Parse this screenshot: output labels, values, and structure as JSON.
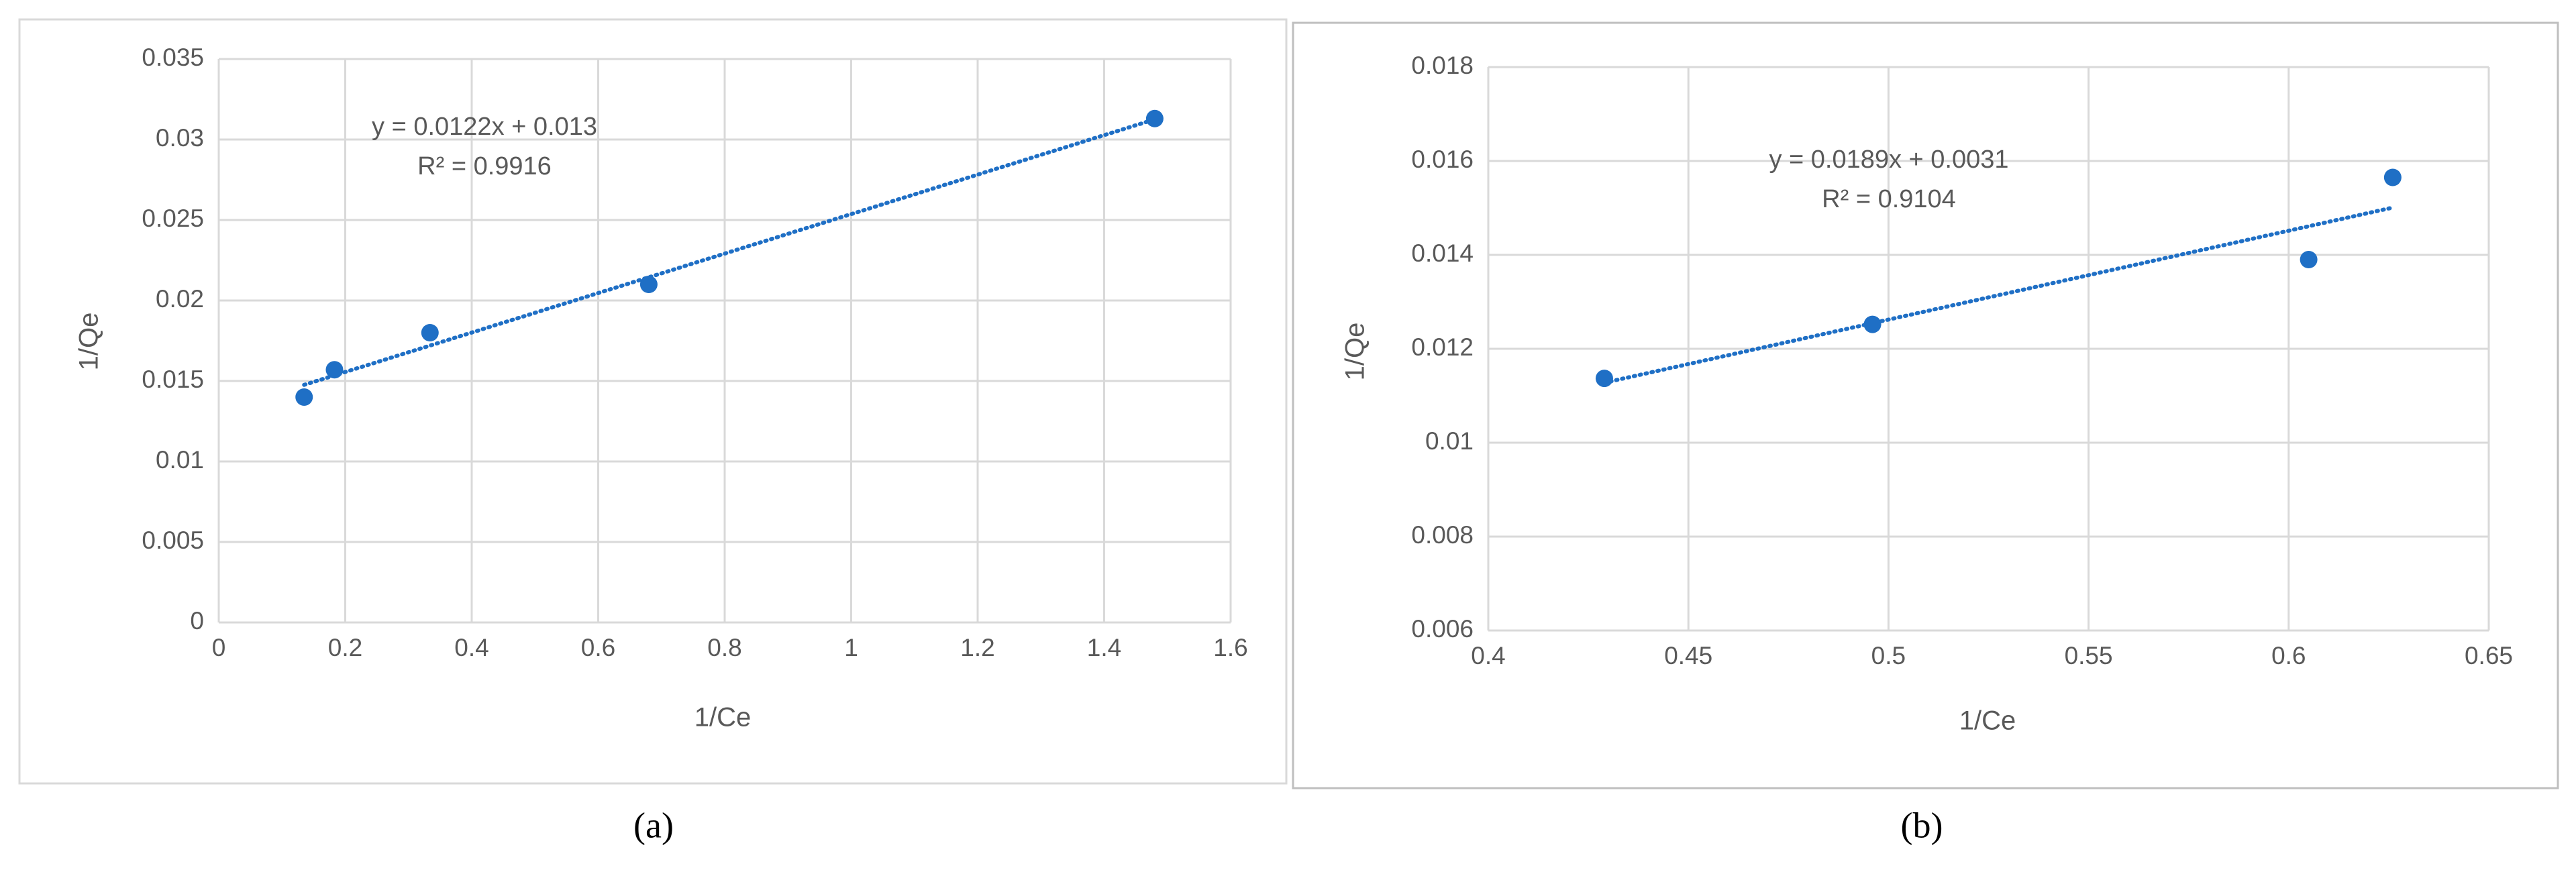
{
  "chart_data": [
    {
      "type": "scatter",
      "x": [
        0.135,
        0.183,
        0.334,
        0.68,
        1.48
      ],
      "y": [
        0.014,
        0.0157,
        0.018,
        0.021,
        0.0313
      ],
      "xlabel": "1/Ce",
      "ylabel": "1/Qe",
      "annotations": [
        "y = 0.0122x + 0.013",
        "R² = 0.9916"
      ],
      "caption": "(a)",
      "xlim": [
        0,
        1.6
      ],
      "xticks": [
        0,
        0.2,
        0.4,
        0.6,
        0.8,
        1,
        1.2,
        1.4,
        1.6
      ],
      "ylim": [
        0,
        0.035
      ],
      "yticks": [
        0,
        0.005,
        0.01,
        0.015,
        0.02,
        0.025,
        0.03,
        0.035
      ],
      "grid": true,
      "color": "#1f6fc5",
      "trendline": true
    },
    {
      "type": "scatter",
      "x": [
        0.429,
        0.496,
        0.605,
        0.626
      ],
      "y": [
        0.01137,
        0.01252,
        0.0139,
        0.01565
      ],
      "xlabel": "1/Ce",
      "ylabel": "1/Qe",
      "annotations": [
        "y = 0.0189x + 0.0031",
        "R² = 0.9104"
      ],
      "caption": "(b)",
      "xlim": [
        0.4,
        0.65
      ],
      "xticks": [
        0.4,
        0.45,
        0.5,
        0.55,
        0.6,
        0.65
      ],
      "ylim": [
        0.006,
        0.018
      ],
      "yticks": [
        0.006,
        0.008,
        0.01,
        0.012,
        0.014,
        0.016,
        0.018
      ],
      "grid": true,
      "color": "#1f6fc5",
      "trendline": true
    }
  ]
}
